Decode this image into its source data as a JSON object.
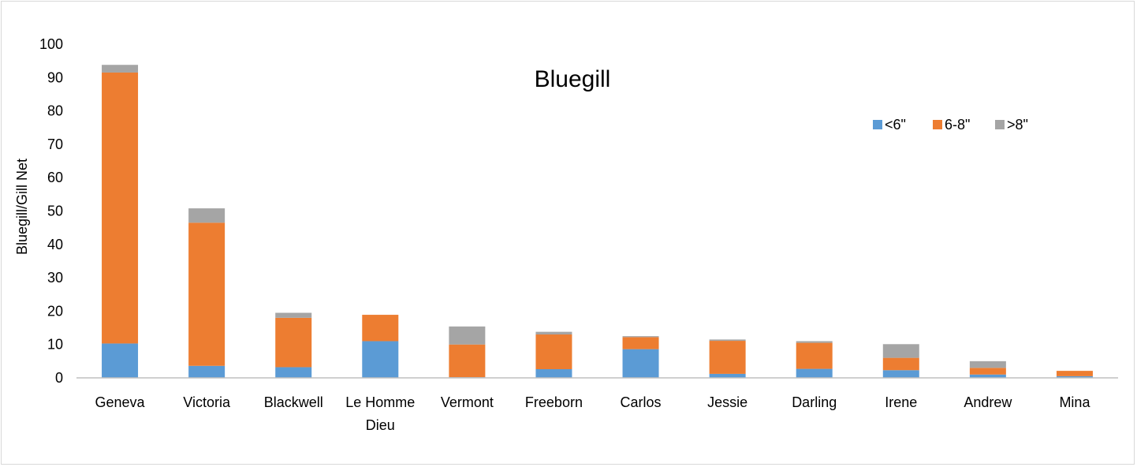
{
  "chart_data": {
    "type": "bar",
    "stacked": true,
    "title": "Bluegill",
    "xlabel": "",
    "ylabel": "Bluegill/Gill Net",
    "ylim": [
      0,
      100
    ],
    "yticks": [
      0,
      10,
      20,
      30,
      40,
      50,
      60,
      70,
      80,
      90,
      100
    ],
    "grid": false,
    "legend_position": "top-right",
    "categories": [
      "Geneva",
      "Victoria",
      "Blackwell",
      "Le Homme Dieu",
      "Vermont",
      "Freeborn",
      "Carlos",
      "Jessie",
      "Darling",
      "Irene",
      "Andrew",
      "Mina"
    ],
    "series": [
      {
        "name": "<6\"",
        "color": "#5b9bd5",
        "values": [
          10.3,
          3.6,
          3.2,
          11.0,
          0.2,
          2.6,
          8.6,
          1.2,
          2.7,
          2.3,
          1.0,
          0.5
        ]
      },
      {
        "name": "6-8\"",
        "color": "#ed7d31",
        "values": [
          81.2,
          42.9,
          14.8,
          7.9,
          9.8,
          10.4,
          3.6,
          9.9,
          7.8,
          3.7,
          2.0,
          1.6
        ]
      },
      {
        "name": ">8\"",
        "color": "#a5a5a5",
        "values": [
          2.3,
          4.3,
          1.5,
          0.0,
          5.4,
          0.8,
          0.3,
          0.4,
          0.5,
          4.1,
          2.0,
          0.0
        ]
      }
    ]
  }
}
